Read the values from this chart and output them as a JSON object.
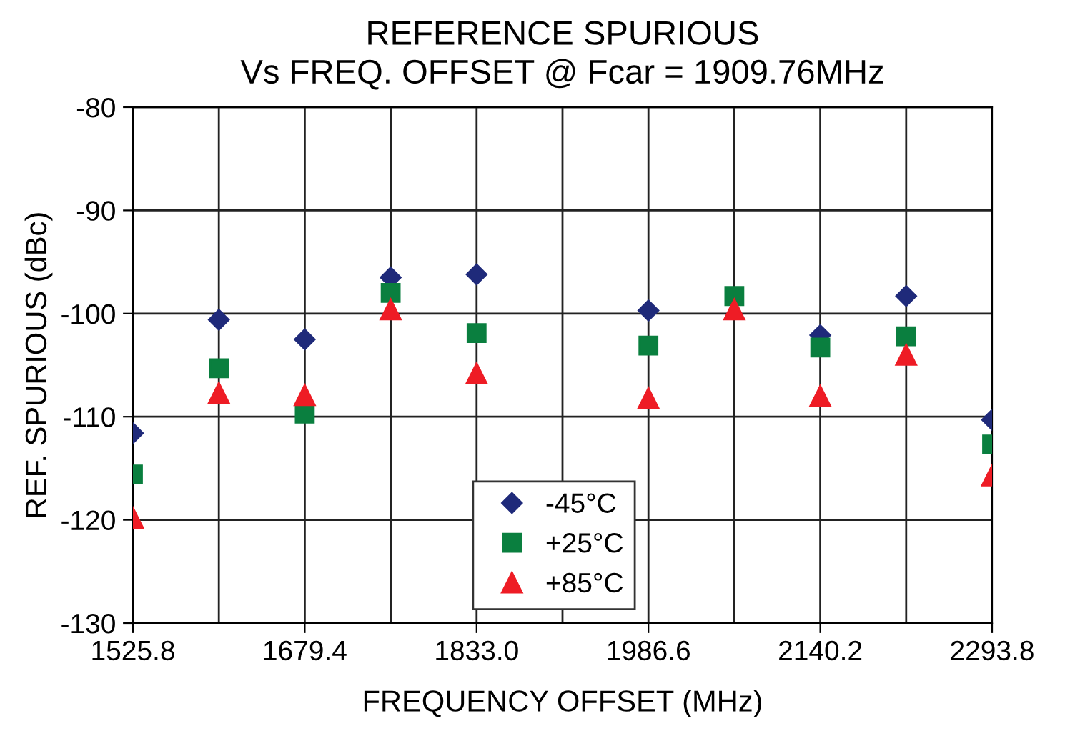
{
  "chart_data": {
    "type": "scatter",
    "title": "REFERENCE SPURIOUS\nVs FREQ. OFFSET @ Fcar = 1909.76MHz",
    "xlabel": "FREQUENCY OFFSET (MHz)",
    "ylabel": "REF. SPURIOUS (dBc)",
    "xlim": [
      1525.8,
      2293.8
    ],
    "xticks": [
      {
        "value": 1525.8,
        "label": "1525.8"
      },
      {
        "value": 1602.6,
        "label": null
      },
      {
        "value": 1679.4,
        "label": "1679.4"
      },
      {
        "value": 1756.2,
        "label": null
      },
      {
        "value": 1833.0,
        "label": "1833.0"
      },
      {
        "value": 1909.8,
        "label": null
      },
      {
        "value": 1986.6,
        "label": "1986.6"
      },
      {
        "value": 2063.4,
        "label": null
      },
      {
        "value": 2140.2,
        "label": "2140.2"
      },
      {
        "value": 2217.0,
        "label": null
      },
      {
        "value": 2293.8,
        "label": "2293.8"
      }
    ],
    "ylim": [
      -130,
      -80
    ],
    "yticks": [
      -130,
      -120,
      -110,
      -100,
      -90,
      -80
    ],
    "grid": true,
    "legend": "bottom",
    "series": [
      {
        "name": "-45°C",
        "color": "#1f2a7a",
        "marker": "diamond",
        "x": [
          1525.8,
          1602.6,
          1679.4,
          1756.2,
          1833.0,
          1986.6,
          2140.2,
          2217.0,
          2293.8
        ],
        "values": [
          -111.6,
          -100.6,
          -102.5,
          -96.5,
          -96.2,
          -99.7,
          -102.1,
          -98.3,
          -110.3
        ]
      },
      {
        "name": "+25°C",
        "color": "#0a7f3f",
        "marker": "square",
        "x": [
          1525.8,
          1602.6,
          1679.4,
          1756.2,
          1833.0,
          1986.6,
          2063.4,
          2140.2,
          2217.0,
          2293.8
        ],
        "values": [
          -115.6,
          -105.3,
          -109.7,
          -98.0,
          -101.9,
          -103.1,
          -98.3,
          -103.3,
          -102.2,
          -112.7
        ]
      },
      {
        "name": "+85°C",
        "color": "#ee1c25",
        "marker": "triangle",
        "x": [
          1525.8,
          1602.6,
          1679.4,
          1756.2,
          1833.0,
          1986.6,
          2063.4,
          2140.2,
          2217.0,
          2293.8
        ],
        "values": [
          -119.8,
          -107.7,
          -107.9,
          -99.6,
          -105.8,
          -108.2,
          -99.6,
          -108.0,
          -104.0,
          -115.7
        ]
      }
    ]
  }
}
